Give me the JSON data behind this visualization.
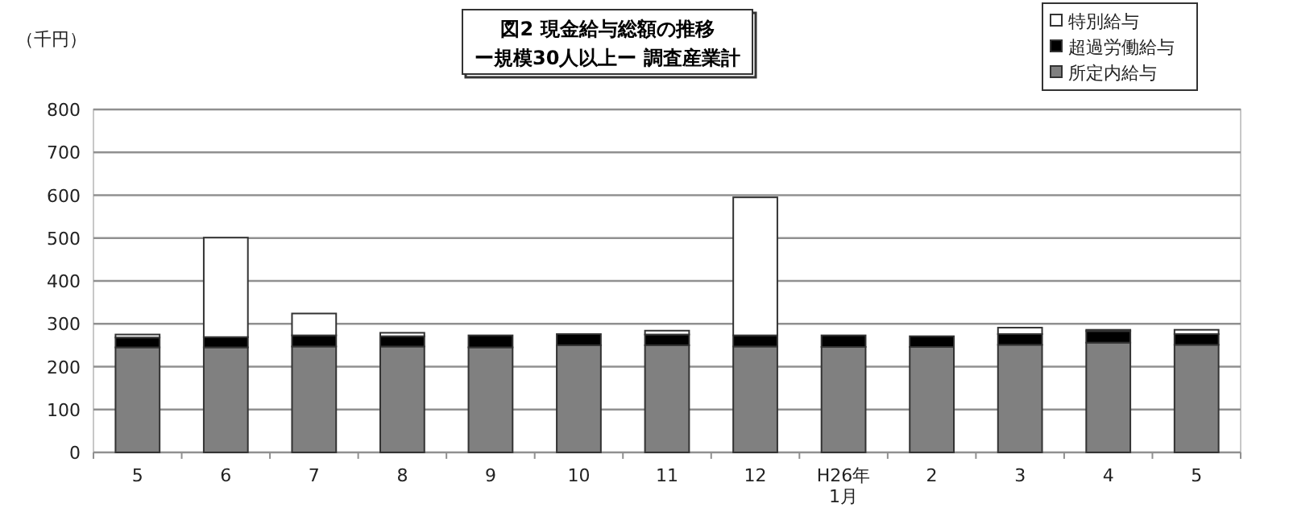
{
  "chart_data": {
    "type": "bar",
    "title": "図2  現金給与総額の推移",
    "subtitle": "ー規模30人以上ー  調査産業計",
    "ylabel": "（千円）",
    "categories": [
      "5",
      "6",
      "7",
      "8",
      "9",
      "10",
      "11",
      "12",
      "H26年\n1月",
      "2",
      "3",
      "4",
      "5"
    ],
    "stacked": true,
    "ylim": [
      0,
      800
    ],
    "yticks": [
      0,
      100,
      200,
      300,
      400,
      500,
      600,
      700,
      800
    ],
    "grid": "y",
    "legend": "top right",
    "series": [
      {
        "name": "所定内給与",
        "color": "#808080",
        "values": [
          245,
          245,
          247,
          247,
          245,
          250,
          250,
          247,
          246,
          246,
          251,
          256,
          251
        ]
      },
      {
        "name": "超過労働給与",
        "color": "#000000",
        "values": [
          23,
          24,
          26,
          24,
          28,
          26,
          25,
          26,
          27,
          25,
          25,
          27,
          25
        ]
      },
      {
        "name": "特別給与",
        "color": "#ffffff",
        "values": [
          7,
          232,
          51,
          8,
          0,
          0,
          9,
          322,
          0,
          0,
          15,
          3,
          10
        ]
      }
    ]
  }
}
